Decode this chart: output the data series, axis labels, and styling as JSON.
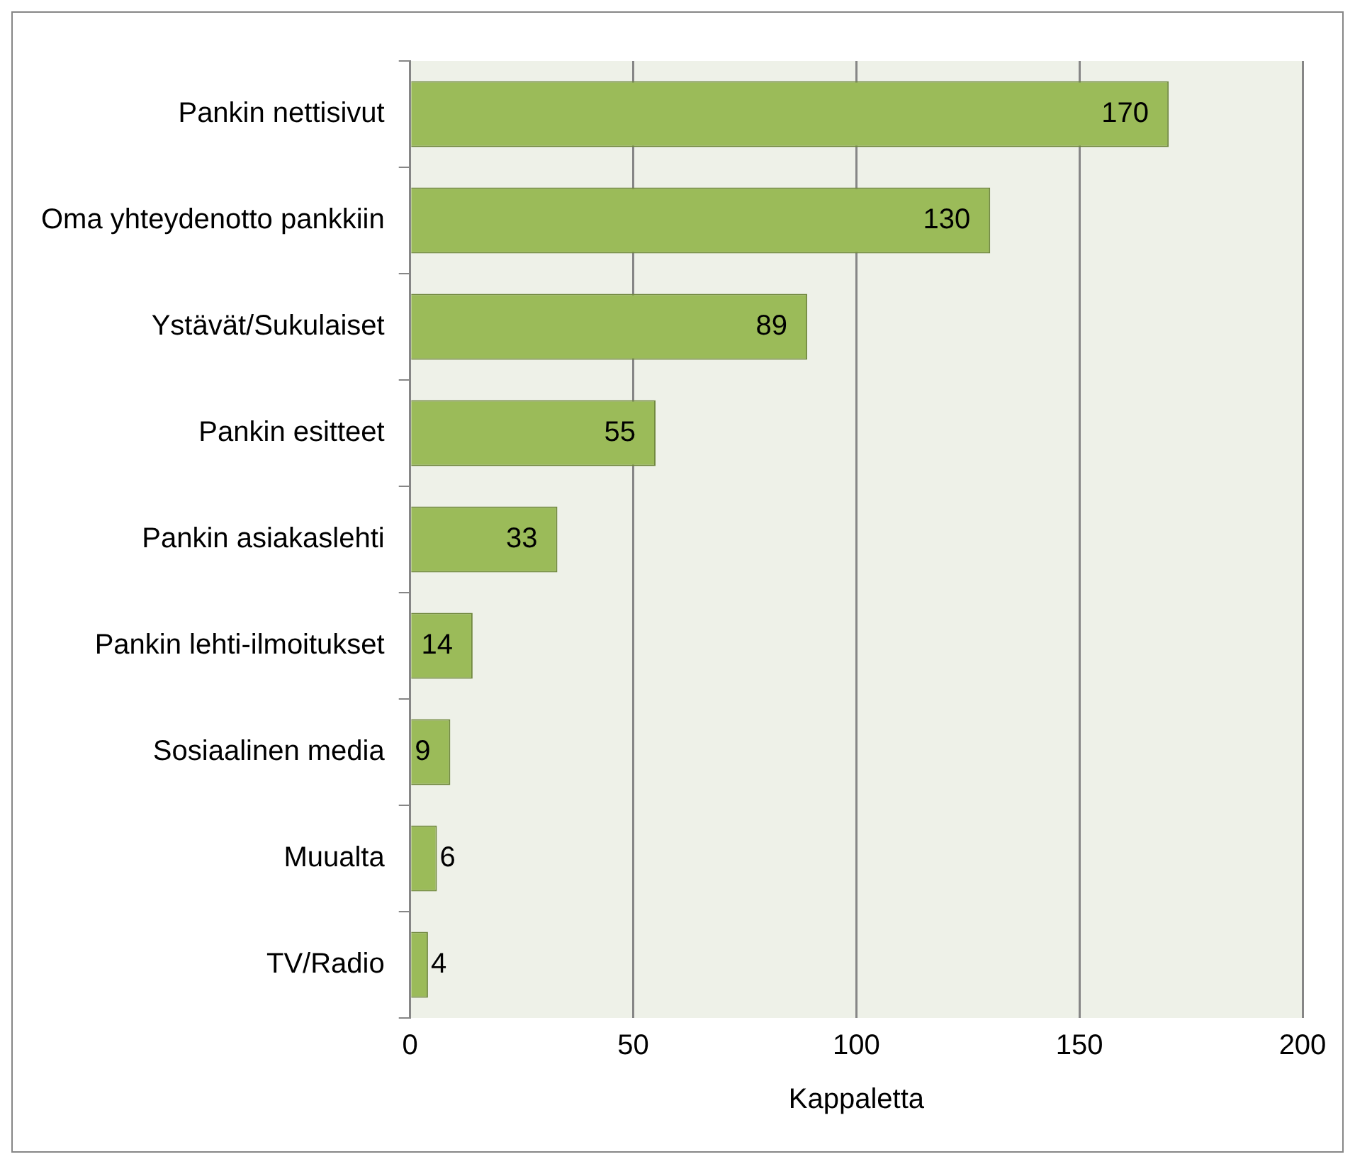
{
  "chart_data": {
    "type": "bar",
    "orientation": "horizontal",
    "xlabel": "Kappaletta",
    "categories": [
      "Pankin nettisivut",
      "Oma yhteydenotto pankkiin",
      "Ystävät/Sukulaiset",
      "Pankin esitteet",
      "Pankin asiakaslehti",
      "Pankin lehti-ilmoitukset",
      "Sosiaalinen media",
      "Muualta",
      "TV/Radio"
    ],
    "values": [
      170,
      130,
      89,
      55,
      33,
      14,
      9,
      6,
      4
    ],
    "color": "#9bbb59",
    "xlim": [
      0,
      200
    ],
    "xticks": [
      0,
      50,
      100,
      150,
      200
    ],
    "grid": "x",
    "data_labels": true,
    "legend": false
  }
}
